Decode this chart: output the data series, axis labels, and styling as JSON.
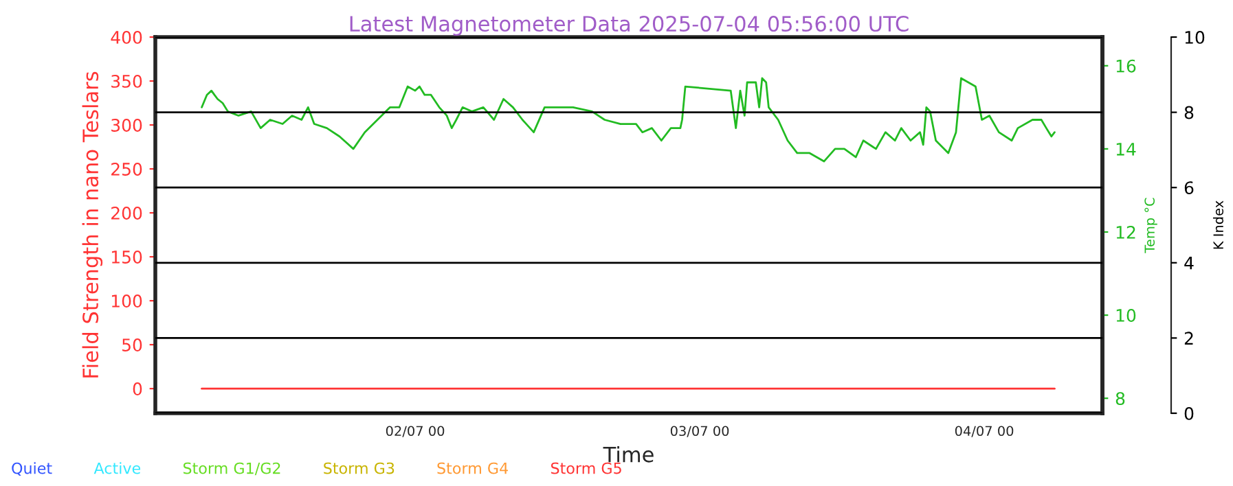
{
  "chart_data": {
    "type": "line",
    "title": "Latest Magnetometer Data 2025-07-04 05:56:00 UTC",
    "xlabel": "Time",
    "ylabel": "Field Strength in nano Teslars",
    "y2label": "Temp °C",
    "y3label": "K Index",
    "xlim": [
      "2025-07-01T02:05",
      "2025-07-04T09:58"
    ],
    "xticks": [
      {
        "value": "2025-07-02T00:00",
        "label": "02/07 00"
      },
      {
        "value": "2025-07-03T00:00",
        "label": "03/07 00"
      },
      {
        "value": "2025-07-04T00:00",
        "label": "04/07 00"
      }
    ],
    "ylim": [
      -28,
      400
    ],
    "yticks": [
      0,
      50,
      100,
      150,
      200,
      250,
      300,
      350,
      400
    ],
    "y2lim": [
      7.64,
      16.69
    ],
    "y2ticks": [
      8,
      10,
      12,
      14,
      16
    ],
    "y3lim": [
      0,
      10
    ],
    "y3ticks": [
      0,
      2,
      4,
      6,
      8,
      10
    ],
    "grid": "y3",
    "legend": false,
    "series": [
      {
        "color": "#ff3333",
        "axis": "y",
        "x": [
          "2025-07-01T06:00",
          "2025-07-04T05:56"
        ],
        "values": [
          0,
          0
        ]
      },
      {
        "color": "#22bb22",
        "axis": "y2",
        "x": [
          "2025-07-01T06:00",
          "2025-07-01T06:26",
          "2025-07-01T06:49",
          "2025-07-01T07:04",
          "2025-07-01T07:20",
          "2025-07-01T07:46",
          "2025-07-01T08:12",
          "2025-07-01T09:06",
          "2025-07-01T10:10",
          "2025-07-01T10:58",
          "2025-07-01T11:46",
          "2025-07-01T12:49",
          "2025-07-01T13:37",
          "2025-07-01T14:25",
          "2025-07-01T14:58",
          "2025-07-01T15:29",
          "2025-07-01T16:33",
          "2025-07-01T17:37",
          "2025-07-01T18:47",
          "2025-07-01T19:45",
          "2025-07-01T20:49",
          "2025-07-01T21:53",
          "2025-07-01T22:40",
          "2025-07-01T23:22",
          "2025-07-02T00:00",
          "2025-07-02T00:22",
          "2025-07-02T00:48",
          "2025-07-02T01:20",
          "2025-07-02T02:02",
          "2025-07-02T02:40",
          "2025-07-02T03:05",
          "2025-07-02T03:28",
          "2025-07-02T04:00",
          "2025-07-02T04:47",
          "2025-07-02T05:45",
          "2025-07-02T06:39",
          "2025-07-02T07:27",
          "2025-07-02T08:15",
          "2025-07-02T09:03",
          "2025-07-02T10:00",
          "2025-07-02T10:55",
          "2025-07-02T11:59",
          "2025-07-02T13:19",
          "2025-07-02T14:55",
          "2025-07-02T15:59",
          "2025-07-02T17:19",
          "2025-07-02T18:38",
          "2025-07-02T19:10",
          "2025-07-02T19:58",
          "2025-07-02T20:46",
          "2025-07-02T21:34",
          "2025-07-02T22:22",
          "2025-07-02T22:31",
          "2025-07-02T22:47",
          "2025-07-03T02:37",
          "2025-07-03T03:03",
          "2025-07-03T03:25",
          "2025-07-03T03:47",
          "2025-07-03T04:00",
          "2025-07-03T04:44",
          "2025-07-03T05:01",
          "2025-07-03T05:16",
          "2025-07-03T05:36",
          "2025-07-03T05:49",
          "2025-07-03T06:37",
          "2025-07-03T07:25",
          "2025-07-03T08:13",
          "2025-07-03T09:16",
          "2025-07-03T10:29",
          "2025-07-03T11:25",
          "2025-07-03T12:12",
          "2025-07-03T13:10",
          "2025-07-03T13:48",
          "2025-07-03T14:52",
          "2025-07-03T15:40",
          "2025-07-03T16:28",
          "2025-07-03T17:00",
          "2025-07-03T17:47",
          "2025-07-03T18:35",
          "2025-07-03T18:51",
          "2025-07-03T19:07",
          "2025-07-03T19:26",
          "2025-07-03T19:55",
          "2025-07-03T20:58",
          "2025-07-03T21:37",
          "2025-07-03T22:03",
          "2025-07-03T23:16",
          "2025-07-03T23:48",
          "2025-07-04T00:26",
          "2025-07-04T01:14",
          "2025-07-04T02:19",
          "2025-07-04T02:50",
          "2025-07-04T04:04",
          "2025-07-04T04:49",
          "2025-07-04T05:14",
          "2025-07-04T05:40",
          "2025-07-04T05:56"
        ],
        "values": [
          15.0,
          15.3,
          15.4,
          15.3,
          15.2,
          15.1,
          14.9,
          14.8,
          14.9,
          14.5,
          14.7,
          14.6,
          14.8,
          14.7,
          15.0,
          14.6,
          14.5,
          14.3,
          14.0,
          14.4,
          14.7,
          15.0,
          15.0,
          15.5,
          15.4,
          15.5,
          15.3,
          15.3,
          15.0,
          14.8,
          14.5,
          14.7,
          15.0,
          14.9,
          15.0,
          14.7,
          15.2,
          15.0,
          14.7,
          14.4,
          15.0,
          15.0,
          15.0,
          14.9,
          14.7,
          14.6,
          14.6,
          14.4,
          14.5,
          14.2,
          14.5,
          14.5,
          14.7,
          15.5,
          15.4,
          14.5,
          15.4,
          14.8,
          15.6,
          15.6,
          15.0,
          15.7,
          15.6,
          15.0,
          14.7,
          14.2,
          13.9,
          13.9,
          13.7,
          14.0,
          14.0,
          13.8,
          14.2,
          14.0,
          14.4,
          14.2,
          14.5,
          14.2,
          14.4,
          14.1,
          15.0,
          14.9,
          14.2,
          13.9,
          14.4,
          15.7,
          15.5,
          14.7,
          14.8,
          14.4,
          14.2,
          14.5,
          14.7,
          14.7,
          14.5,
          14.3,
          14.4
        ]
      }
    ],
    "annotations": [
      "Quiet",
      "Active",
      "Storm G1/G2",
      "Storm G3",
      "Storm G4",
      "Storm G5"
    ]
  }
}
